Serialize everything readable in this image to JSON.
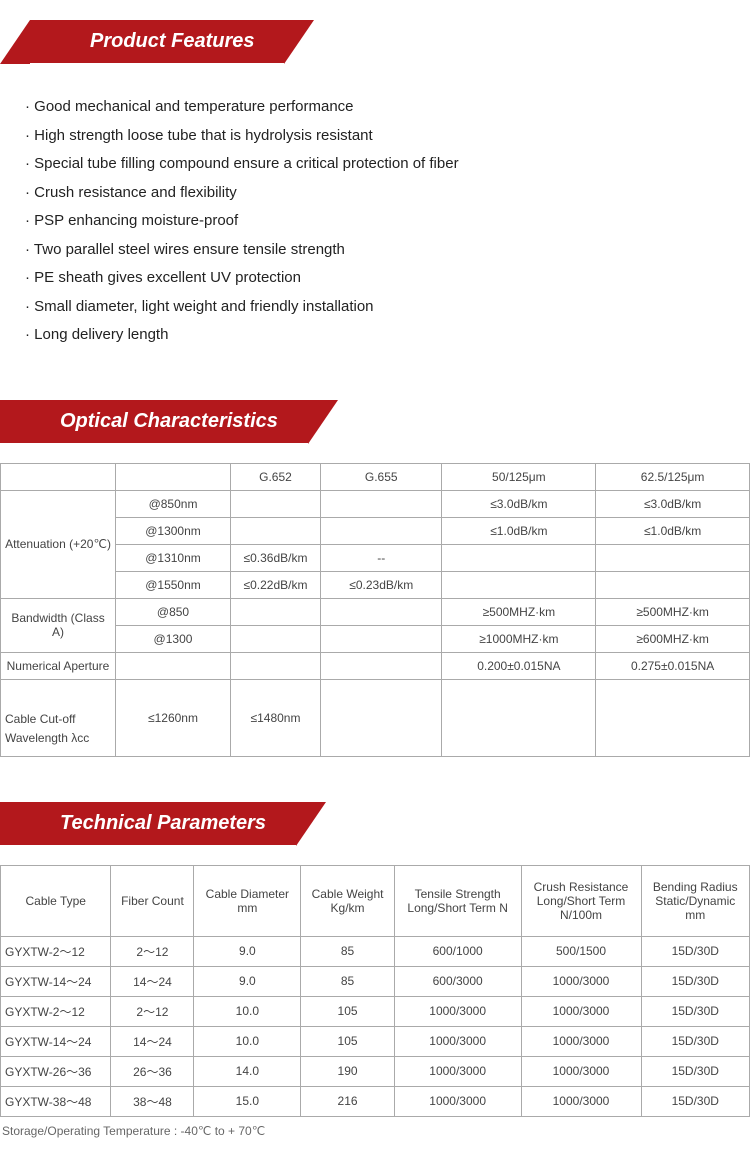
{
  "sections": {
    "features_title": "Product Features",
    "optical_title": "Optical Characteristics",
    "technical_title": "Technical Parameters"
  },
  "features": [
    "Good mechanical and temperature performance",
    "High strength loose tube that is hydrolysis resistant",
    "Special tube filling compound ensure a critical protection of fiber",
    "Crush resistance and flexibility",
    "PSP enhancing moisture-proof",
    "Two parallel steel wires ensure tensile strength",
    "PE sheath gives excellent UV protection",
    "Small diameter, light weight and friendly installation",
    "Long delivery length"
  ],
  "optical": {
    "col_headers": [
      "",
      "",
      "G.652",
      "G.655",
      "50/125μm",
      "62.5/125μm"
    ],
    "rows": [
      {
        "label": "Attenuation (+20℃)",
        "sub": "@850nm",
        "g652": "",
        "g655": "",
        "c50": "≤3.0dB/km",
        "c62": "≤3.0dB/km",
        "rowspan": 4
      },
      {
        "label": "",
        "sub": "@1300nm",
        "g652": "",
        "g655": "",
        "c50": "≤1.0dB/km",
        "c62": "≤1.0dB/km"
      },
      {
        "label": "",
        "sub": "@1310nm",
        "g652": "≤0.36dB/km",
        "g655": "--",
        "c50": "",
        "c62": ""
      },
      {
        "label": "",
        "sub": "@1550nm",
        "g652": "≤0.22dB/km",
        "g655": "≤0.23dB/km",
        "c50": "",
        "c62": ""
      },
      {
        "label": "Bandwidth (Class A)",
        "sub": "@850",
        "g652": "",
        "g655": "",
        "c50": "≥500MHZ·km",
        "c62": "≥500MHZ·km",
        "rowspan": 2
      },
      {
        "label": "",
        "sub": "@1300",
        "g652": "",
        "g655": "",
        "c50": "≥1000MHZ·km",
        "c62": "≥600MHZ·km"
      },
      {
        "label": "Numerical Aperture",
        "sub": "",
        "g652": "",
        "g655": "",
        "c50": "0.200±0.015NA",
        "c62": "0.275±0.015NA",
        "rowspan": 1
      },
      {
        "label": "Cable Cut-off Wavelength λcc",
        "sub": "≤1260nm",
        "g652": "≤1480nm",
        "g655": "",
        "c50": "",
        "c62": "",
        "rowspan": 1
      }
    ]
  },
  "technical": {
    "headers": [
      "Cable Type",
      "Fiber Count",
      "Cable Diameter\nmm",
      "Cable Weight\nKg/km",
      "Tensile Strength\nLong/Short Term  N",
      "Crush Resistance\nLong/Short Term\nN/100m",
      "Bending Radius\nStatic/Dynamic\nmm"
    ],
    "rows": [
      [
        "GYXTW-2～12",
        "2～12",
        "9.0",
        "85",
        "600/1000",
        "500/1500",
        "15D/30D"
      ],
      [
        "GYXTW-14～24",
        "14～24",
        "9.0",
        "85",
        "600/3000",
        "1000/3000",
        "15D/30D"
      ],
      [
        "GYXTW-2～12",
        "2～12",
        "10.0",
        "105",
        "1000/3000",
        "1000/3000",
        "15D/30D"
      ],
      [
        "GYXTW-14～24",
        "14～24",
        "10.0",
        "105",
        "1000/3000",
        "1000/3000",
        "15D/30D"
      ],
      [
        "GYXTW-26～36",
        "26～36",
        "14.0",
        "190",
        "1000/3000",
        "1000/3000",
        "15D/30D"
      ],
      [
        "GYXTW-38～48",
        "38～48",
        "15.0",
        "216",
        "1000/3000",
        "1000/3000",
        "15D/30D"
      ]
    ],
    "temp_note": "Storage/Operating Temperature : -40℃ to + 70℃"
  },
  "colors": {
    "header_bg": "#b3181c",
    "header_text": "#ffffff",
    "border": "#aaaaaa",
    "text": "#222222"
  }
}
